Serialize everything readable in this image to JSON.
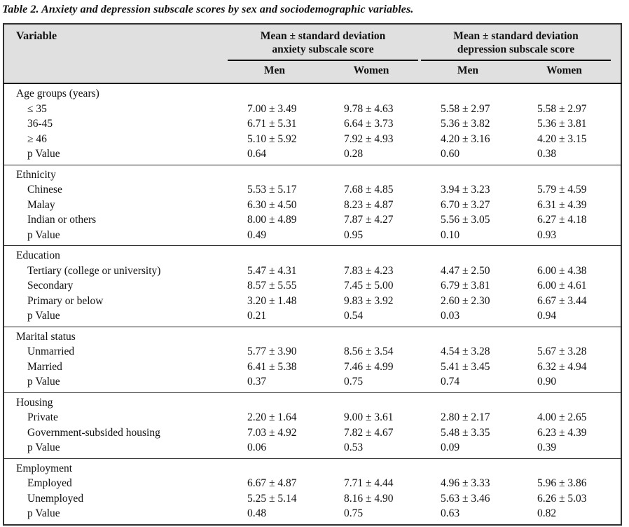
{
  "title": "Table 2. Anxiety and depression subscale scores by sex and sociodemographic variables.",
  "colors": {
    "header_background": "#e0e0e0",
    "border": "#2f2f2f",
    "text": "#111111"
  },
  "table": {
    "col1_header": "Variable",
    "group_headers": [
      {
        "line1": "Mean ± standard deviation",
        "line2": "anxiety subscale score"
      },
      {
        "line1": "Mean ± standard deviation",
        "line2": "depression subscale score"
      }
    ],
    "sub_headers": [
      "Men",
      "Women",
      "Men",
      "Women"
    ],
    "sections": [
      {
        "label": "Age groups (years)",
        "rows": [
          {
            "label": "≤ 35",
            "values": [
              "7.00 ± 3.49",
              "9.78 ± 4.63",
              "5.58 ± 2.97",
              "5.58 ± 2.97"
            ]
          },
          {
            "label": "36-45",
            "values": [
              "6.71 ± 5.31",
              "6.64 ± 3.73",
              "5.36 ± 3.82",
              "5.36 ± 3.81"
            ]
          },
          {
            "label": "≥ 46",
            "values": [
              "5.10 ± 5.92",
              "7.92 ± 4.93",
              "4.20 ± 3.16",
              "4.20 ± 3.15"
            ]
          },
          {
            "label": "p Value",
            "values": [
              "0.64",
              "0.28",
              "0.60",
              "0.38"
            ]
          }
        ]
      },
      {
        "label": "Ethnicity",
        "rows": [
          {
            "label": "Chinese",
            "values": [
              "5.53 ± 5.17",
              "7.68 ± 4.85",
              "3.94 ± 3.23",
              "5.79 ± 4.59"
            ]
          },
          {
            "label": "Malay",
            "values": [
              "6.30 ± 4.50",
              "8.23 ± 4.87",
              "6.70 ± 3.27",
              "6.31 ± 4.39"
            ]
          },
          {
            "label": "Indian or others",
            "values": [
              "8.00 ± 4.89",
              "7.87 ± 4.27",
              "5.56 ± 3.05",
              "6.27 ± 4.18"
            ]
          },
          {
            "label": "p Value",
            "values": [
              "0.49",
              "0.95",
              "0.10",
              "0.93"
            ]
          }
        ]
      },
      {
        "label": "Education",
        "rows": [
          {
            "label": "Tertiary (college or university)",
            "values": [
              "5.47 ± 4.31",
              "7.83 ± 4.23",
              "4.47 ± 2.50",
              "6.00 ± 4.38"
            ]
          },
          {
            "label": "Secondary",
            "values": [
              "8.57 ± 5.55",
              "7.45 ± 5.00",
              "6.79 ± 3.81",
              "6.00 ± 4.61"
            ]
          },
          {
            "label": "Primary or below",
            "values": [
              "3.20 ± 1.48",
              "9.83 ± 3.92",
              "2.60 ± 2.30",
              "6.67 ± 3.44"
            ]
          },
          {
            "label": "p Value",
            "values": [
              "0.21",
              "0.54",
              "0.03",
              "0.94"
            ]
          }
        ]
      },
      {
        "label": "Marital status",
        "rows": [
          {
            "label": "Unmarried",
            "values": [
              "5.77 ± 3.90",
              "8.56 ± 3.54",
              "4.54 ± 3.28",
              "5.67 ± 3.28"
            ]
          },
          {
            "label": "Married",
            "values": [
              "6.41 ± 5.38",
              "7.46 ± 4.99",
              "5.41 ± 3.45",
              "6.32 ± 4.94"
            ]
          },
          {
            "label": "p Value",
            "values": [
              "0.37",
              "0.75",
              "0.74",
              "0.90"
            ]
          }
        ]
      },
      {
        "label": "Housing",
        "rows": [
          {
            "label": "Private",
            "values": [
              "2.20 ± 1.64",
              "9.00 ± 3.61",
              "2.80 ± 2.17",
              "4.00 ± 2.65"
            ]
          },
          {
            "label": "Government-subsided housing",
            "values": [
              "7.03 ± 4.92",
              "7.82 ± 4.67",
              "5.48 ± 3.35",
              "6.23 ± 4.39"
            ]
          },
          {
            "label": "p Value",
            "values": [
              "0.06",
              "0.53",
              "0.09",
              "0.39"
            ]
          }
        ]
      },
      {
        "label": "Employment",
        "rows": [
          {
            "label": "Employed",
            "values": [
              "6.67 ± 4.87",
              "7.71 ± 4.44",
              "4.96 ± 3.33",
              "5.96 ± 3.86"
            ]
          },
          {
            "label": "Unemployed",
            "values": [
              "5.25 ± 5.14",
              "8.16 ± 4.90",
              "5.63 ± 3.46",
              "6.26 ± 5.03"
            ]
          },
          {
            "label": "p Value",
            "values": [
              "0.48",
              "0.75",
              "0.63",
              "0.82"
            ]
          }
        ]
      }
    ]
  }
}
